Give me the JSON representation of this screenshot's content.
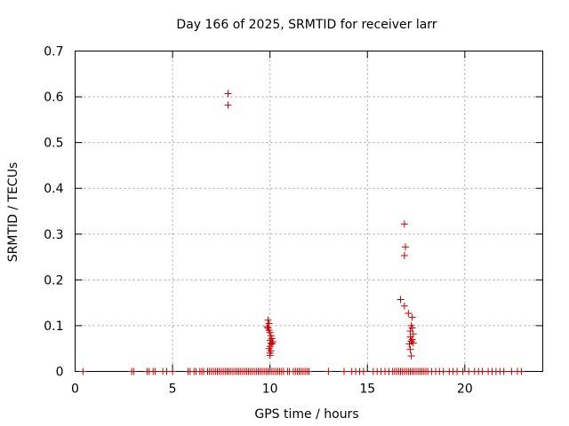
{
  "chart_data": {
    "type": "scatter",
    "title": "Day 166 of 2025, SRMTID for receiver larr",
    "xlabel": "GPS time / hours",
    "ylabel": "SRMTID / TECUs",
    "xlim": [
      0,
      24
    ],
    "ylim": [
      0,
      0.7
    ],
    "xticks": [
      0,
      5,
      10,
      15,
      20
    ],
    "xtick_labels": [
      "0",
      "5",
      "10",
      "15",
      "20"
    ],
    "yticks": [
      0,
      0.1,
      0.2,
      0.3,
      0.4,
      0.5,
      0.6,
      0.7
    ],
    "ytick_labels": [
      "0",
      "0.1",
      "0.2",
      "0.3",
      "0.4",
      "0.5",
      "0.6",
      "0.7"
    ],
    "grid": true,
    "marker": "+",
    "color": "#cc0000",
    "series": [
      {
        "name": "SRMTID",
        "points": [
          [
            0.4,
            0
          ],
          [
            2.9,
            0
          ],
          [
            3.0,
            0
          ],
          [
            3.7,
            0
          ],
          [
            3.8,
            0
          ],
          [
            4.0,
            0
          ],
          [
            4.1,
            0
          ],
          [
            4.5,
            0
          ],
          [
            4.7,
            0
          ],
          [
            5.0,
            0
          ],
          [
            5.8,
            0
          ],
          [
            5.9,
            0
          ],
          [
            6.1,
            0
          ],
          [
            6.2,
            0
          ],
          [
            6.4,
            0
          ],
          [
            6.5,
            0
          ],
          [
            6.6,
            0
          ],
          [
            6.8,
            0
          ],
          [
            6.9,
            0
          ],
          [
            7.0,
            0
          ],
          [
            7.1,
            0
          ],
          [
            7.2,
            0
          ],
          [
            7.3,
            0
          ],
          [
            7.4,
            0
          ],
          [
            7.5,
            0
          ],
          [
            7.6,
            0
          ],
          [
            7.7,
            0
          ],
          [
            7.8,
            0
          ],
          [
            7.9,
            0
          ],
          [
            8.0,
            0
          ],
          [
            8.1,
            0
          ],
          [
            8.2,
            0
          ],
          [
            8.3,
            0
          ],
          [
            8.4,
            0
          ],
          [
            8.5,
            0
          ],
          [
            8.6,
            0
          ],
          [
            8.7,
            0
          ],
          [
            8.8,
            0
          ],
          [
            8.9,
            0
          ],
          [
            9.0,
            0
          ],
          [
            9.1,
            0
          ],
          [
            9.2,
            0
          ],
          [
            9.3,
            0
          ],
          [
            9.4,
            0
          ],
          [
            9.5,
            0
          ],
          [
            9.6,
            0
          ],
          [
            9.7,
            0
          ],
          [
            9.8,
            0
          ],
          [
            9.9,
            0
          ],
          [
            10.0,
            0
          ],
          [
            10.1,
            0
          ],
          [
            10.2,
            0
          ],
          [
            10.3,
            0
          ],
          [
            10.4,
            0
          ],
          [
            10.5,
            0
          ],
          [
            10.6,
            0
          ],
          [
            10.7,
            0
          ],
          [
            10.9,
            0
          ],
          [
            11.0,
            0
          ],
          [
            11.2,
            0
          ],
          [
            11.3,
            0
          ],
          [
            11.4,
            0
          ],
          [
            11.5,
            0
          ],
          [
            11.6,
            0
          ],
          [
            11.7,
            0
          ],
          [
            11.8,
            0
          ],
          [
            11.9,
            0
          ],
          [
            12.0,
            0
          ],
          [
            13.0,
            0
          ],
          [
            13.8,
            0
          ],
          [
            14.2,
            0
          ],
          [
            14.4,
            0
          ],
          [
            14.6,
            0
          ],
          [
            14.8,
            0
          ],
          [
            15.3,
            0
          ],
          [
            15.5,
            0
          ],
          [
            15.7,
            0
          ],
          [
            15.9,
            0
          ],
          [
            16.1,
            0
          ],
          [
            16.3,
            0
          ],
          [
            16.4,
            0
          ],
          [
            16.5,
            0
          ],
          [
            16.6,
            0
          ],
          [
            16.7,
            0
          ],
          [
            16.8,
            0
          ],
          [
            16.9,
            0
          ],
          [
            17.0,
            0
          ],
          [
            17.1,
            0
          ],
          [
            17.2,
            0
          ],
          [
            17.3,
            0
          ],
          [
            17.4,
            0
          ],
          [
            17.5,
            0
          ],
          [
            17.6,
            0
          ],
          [
            17.7,
            0
          ],
          [
            17.8,
            0
          ],
          [
            17.9,
            0
          ],
          [
            18.0,
            0
          ],
          [
            18.1,
            0
          ],
          [
            18.3,
            0
          ],
          [
            18.5,
            0
          ],
          [
            18.7,
            0
          ],
          [
            18.9,
            0
          ],
          [
            19.2,
            0
          ],
          [
            19.4,
            0
          ],
          [
            19.6,
            0
          ],
          [
            19.9,
            0
          ],
          [
            20.2,
            0
          ],
          [
            20.5,
            0
          ],
          [
            20.7,
            0
          ],
          [
            20.9,
            0
          ],
          [
            21.2,
            0
          ],
          [
            21.4,
            0
          ],
          [
            21.6,
            0
          ],
          [
            21.8,
            0
          ],
          [
            22.0,
            0
          ],
          [
            22.4,
            0
          ],
          [
            22.7,
            0
          ],
          [
            22.9,
            0
          ],
          [
            7.85,
            0.607
          ],
          [
            7.85,
            0.582
          ],
          [
            9.9,
            0.112
          ],
          [
            9.95,
            0.105
          ],
          [
            9.85,
            0.098
          ],
          [
            9.9,
            0.095
          ],
          [
            9.95,
            0.09
          ],
          [
            10.0,
            0.085
          ],
          [
            10.05,
            0.078
          ],
          [
            10.1,
            0.072
          ],
          [
            10.0,
            0.068
          ],
          [
            10.15,
            0.065
          ],
          [
            10.05,
            0.062
          ],
          [
            10.1,
            0.06
          ],
          [
            10.0,
            0.055
          ],
          [
            9.95,
            0.05
          ],
          [
            10.05,
            0.045
          ],
          [
            10.0,
            0.04
          ],
          [
            10.0,
            0.035
          ],
          [
            16.9,
            0.322
          ],
          [
            16.95,
            0.272
          ],
          [
            16.9,
            0.253
          ],
          [
            16.7,
            0.157
          ],
          [
            16.9,
            0.143
          ],
          [
            17.1,
            0.127
          ],
          [
            17.3,
            0.118
          ],
          [
            17.25,
            0.1
          ],
          [
            17.3,
            0.095
          ],
          [
            17.2,
            0.088
          ],
          [
            17.35,
            0.082
          ],
          [
            17.2,
            0.075
          ],
          [
            17.3,
            0.07
          ],
          [
            17.25,
            0.066
          ],
          [
            17.35,
            0.062
          ],
          [
            17.15,
            0.06
          ],
          [
            17.2,
            0.048
          ],
          [
            17.25,
            0.034
          ]
        ]
      }
    ]
  }
}
